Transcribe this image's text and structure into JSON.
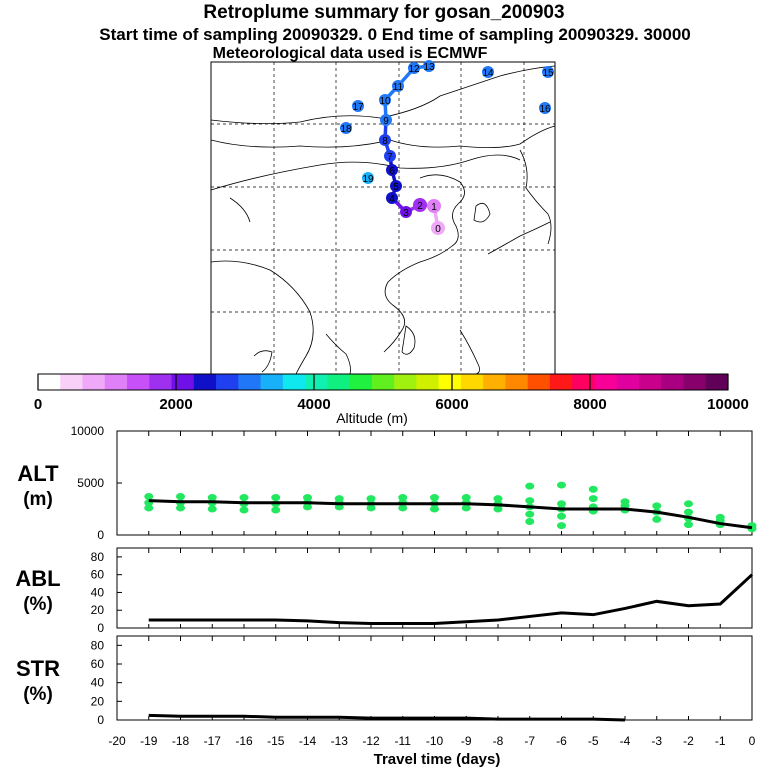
{
  "header": {
    "title": "Retroplume summary for gosan_200903",
    "subtitle": "Start time of sampling 20090329.     0      End time of sampling 20090329. 30000",
    "met_line": "Meteorological data used is ECMWF"
  },
  "map": {
    "trajectory_labels": [
      "0",
      "1",
      "2",
      "3",
      "4",
      "5",
      "6",
      "7",
      "8",
      "9",
      "10",
      "11",
      "12",
      "13",
      "14",
      "15",
      "16",
      "17",
      "18",
      "19"
    ]
  },
  "colorbar": {
    "title": "Altitude (m)",
    "ticks": [
      "0",
      "2000",
      "4000",
      "6000",
      "8000",
      "10000"
    ],
    "colors": [
      "#ffffff",
      "#f8d0f8",
      "#f0a8f8",
      "#e080f8",
      "#c850f8",
      "#a030f0",
      "#7010e8",
      "#1010c8",
      "#2040f0",
      "#2078f8",
      "#18b0f8",
      "#10e8f0",
      "#10f0b0",
      "#10f080",
      "#20f040",
      "#60f020",
      "#a0f010",
      "#d0f000",
      "#ffff00",
      "#ffd800",
      "#ffb000",
      "#ff8800",
      "#ff5000",
      "#ff1818",
      "#ff0060",
      "#f80098",
      "#e000a0",
      "#c8008c",
      "#a80080",
      "#88006c",
      "#600058"
    ]
  },
  "chart_data": [
    {
      "type": "line",
      "name": "ALT",
      "ylabel": "ALT\n(m)",
      "ylim": [
        0,
        10000
      ],
      "yticks": [
        "10000",
        "5000",
        "0"
      ],
      "x": [
        0,
        -1,
        -2,
        -3,
        -4,
        -5,
        -6,
        -7,
        -8,
        -9,
        -10,
        -11,
        -12,
        -13,
        -14,
        -15,
        -16,
        -17,
        -18,
        -19
      ],
      "values": [
        700,
        1100,
        1700,
        2200,
        2500,
        2500,
        2500,
        2700,
        2900,
        3000,
        3000,
        3000,
        3000,
        3000,
        3100,
        3100,
        3100,
        3200,
        3200,
        3300
      ],
      "scatter": [
        {
          "x": 0,
          "y": [
            600,
            900
          ]
        },
        {
          "x": -1,
          "y": [
            1000,
            1400,
            1700
          ]
        },
        {
          "x": -2,
          "y": [
            1000,
            1600,
            2200,
            3000
          ]
        },
        {
          "x": -3,
          "y": [
            1500,
            2200,
            2800
          ]
        },
        {
          "x": -4,
          "y": [
            2400,
            2800,
            3200
          ]
        },
        {
          "x": -5,
          "y": [
            2300,
            2700,
            3500,
            4400
          ]
        },
        {
          "x": -6,
          "y": [
            900,
            1800,
            2500,
            3000,
            4800
          ]
        },
        {
          "x": -7,
          "y": [
            1300,
            2000,
            2700,
            3300,
            4700
          ]
        },
        {
          "x": -8,
          "y": [
            2500,
            3000,
            3500
          ]
        },
        {
          "x": -9,
          "y": [
            2600,
            3100,
            3600
          ]
        },
        {
          "x": -10,
          "y": [
            2500,
            3000,
            3600
          ]
        },
        {
          "x": -11,
          "y": [
            2600,
            3100,
            3600
          ]
        },
        {
          "x": -12,
          "y": [
            2600,
            3000,
            3500
          ]
        },
        {
          "x": -13,
          "y": [
            2700,
            3100,
            3500
          ]
        },
        {
          "x": -14,
          "y": [
            2700,
            3100,
            3600
          ]
        },
        {
          "x": -15,
          "y": [
            2400,
            3000,
            3600
          ]
        },
        {
          "x": -16,
          "y": [
            2400,
            3000,
            3600
          ]
        },
        {
          "x": -17,
          "y": [
            2500,
            3100,
            3600
          ]
        },
        {
          "x": -18,
          "y": [
            2600,
            3100,
            3700
          ]
        },
        {
          "x": -19,
          "y": [
            2600,
            3100,
            3700
          ]
        }
      ]
    },
    {
      "type": "line",
      "name": "ABL",
      "ylabel": "ABL\n(%)",
      "ylim": [
        0,
        90
      ],
      "yticks": [
        "80",
        "60",
        "40",
        "20",
        "0"
      ],
      "x": [
        0,
        -1,
        -2,
        -3,
        -4,
        -5,
        -6,
        -7,
        -8,
        -9,
        -10,
        -11,
        -12,
        -13,
        -14,
        -15,
        -16,
        -17,
        -18,
        -19
      ],
      "values": [
        60,
        27,
        25,
        30,
        22,
        15,
        17,
        13,
        9,
        7,
        5,
        5,
        5,
        6,
        8,
        9,
        9,
        9,
        9,
        9
      ]
    },
    {
      "type": "line",
      "name": "STR",
      "ylabel": "STR\n(%)",
      "ylim": [
        0,
        90
      ],
      "yticks": [
        "80",
        "60",
        "40",
        "20",
        "0"
      ],
      "x": [
        -4,
        -5,
        -6,
        -7,
        -8,
        -9,
        -10,
        -11,
        -12,
        -13,
        -14,
        -15,
        -16,
        -17,
        -18,
        -19
      ],
      "values": [
        0,
        1,
        1,
        1,
        1,
        2,
        2,
        2,
        2,
        3,
        3,
        3,
        4,
        4,
        4,
        5
      ]
    }
  ],
  "xaxis": {
    "label": "Travel time (days)",
    "ticks": [
      "-20",
      "-19",
      "-18",
      "-17",
      "-16",
      "-15",
      "-14",
      "-13",
      "-12",
      "-11",
      "-10",
      "-9",
      "-8",
      "-7",
      "-6",
      "-5",
      "-4",
      "-3",
      "-2",
      "-1",
      "0"
    ]
  }
}
